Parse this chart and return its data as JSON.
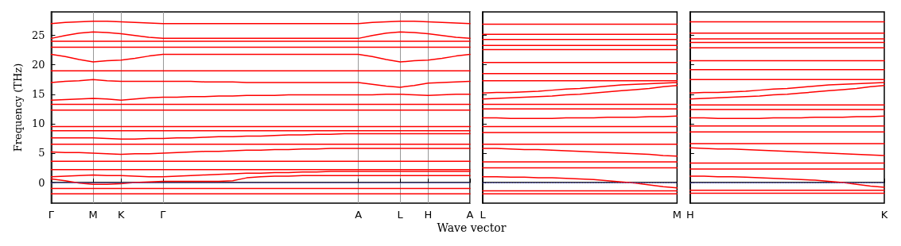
{
  "chart_data": [
    {
      "type": "line",
      "ylabel": "Frequency (THz)",
      "xlabel": "Wave vector",
      "categories": [
        "Γ",
        null,
        null,
        "M",
        null,
        "K",
        null,
        null,
        "Γ",
        null,
        null,
        null,
        null,
        null,
        null,
        null,
        null,
        null,
        null,
        null,
        null,
        null,
        "A",
        null,
        null,
        "L",
        null,
        "H",
        null,
        null,
        "A"
      ],
      "ylim": [
        -3.5,
        29
      ],
      "yticks": [
        0,
        5,
        10,
        15,
        20,
        25
      ],
      "grid": "x",
      "ref_lines": [
        {
          "axis": "y",
          "value": 0,
          "color": "#6a6aff",
          "line_style": "dotted"
        }
      ],
      "series": [
        {
          "color": "#ff0000",
          "values": [
            -1.9,
            -1.9,
            -1.9,
            -1.9,
            -1.9,
            -1.9,
            -1.9,
            -1.9,
            -1.9,
            -1.9,
            -1.9,
            -1.9,
            -1.9,
            -1.9,
            -1.9,
            -1.9,
            -1.9,
            -1.9,
            -1.9,
            -1.9,
            -1.9,
            -1.9,
            -1.9,
            -1.9,
            -1.9,
            -1.9,
            -1.9,
            -1.9,
            -1.9,
            -1.9,
            -1.9
          ]
        },
        {
          "color": "#ff0000",
          "values": [
            -1.0,
            -1.0,
            -1.0,
            -1.0,
            -1.0,
            -1.0,
            -1.0,
            -1.0,
            -1.0,
            -1.0,
            -1.0,
            -1.0,
            -1.0,
            -1.0,
            -1.0,
            -1.0,
            -1.0,
            -1.0,
            -1.0,
            -1.0,
            -1.0,
            -1.0,
            -1.0,
            -1.0,
            -1.0,
            -1.0,
            -1.0,
            -1.0,
            -1.0,
            -1.0,
            -1.0
          ]
        },
        {
          "color": "#ff0000",
          "values": [
            2.2,
            2.2,
            2.2,
            2.2,
            2.2,
            2.2,
            2.2,
            2.2,
            2.2,
            2.2,
            2.2,
            2.2,
            2.2,
            2.2,
            2.2,
            2.2,
            2.2,
            2.2,
            2.2,
            2.2,
            2.2,
            2.2,
            2.2,
            2.2,
            2.2,
            2.2,
            2.2,
            2.2,
            2.2,
            2.2,
            2.2
          ]
        },
        {
          "color": "#ff0000",
          "values": [
            3.6,
            3.6,
            3.6,
            3.6,
            3.6,
            3.6,
            3.6,
            3.6,
            3.6,
            3.6,
            3.6,
            3.6,
            3.6,
            3.6,
            3.6,
            3.6,
            3.6,
            3.6,
            3.6,
            3.6,
            3.6,
            3.6,
            3.6,
            3.6,
            3.6,
            3.6,
            3.6,
            3.6,
            3.6,
            3.6,
            3.6
          ]
        },
        {
          "color": "#ff0000",
          "values": [
            6.5,
            6.5,
            6.5,
            6.5,
            6.5,
            6.5,
            6.5,
            6.5,
            6.5,
            6.5,
            6.5,
            6.5,
            6.5,
            6.5,
            6.5,
            6.5,
            6.5,
            6.5,
            6.5,
            6.5,
            6.5,
            6.5,
            6.5,
            6.5,
            6.5,
            6.5,
            6.5,
            6.5,
            6.5,
            6.5,
            6.5
          ]
        },
        {
          "color": "#ff0000",
          "values": [
            8.8,
            8.8,
            8.8,
            8.8,
            8.8,
            8.8,
            8.8,
            8.8,
            8.8,
            8.8,
            8.8,
            8.8,
            8.8,
            8.8,
            8.8,
            8.8,
            8.8,
            8.8,
            8.8,
            8.8,
            8.8,
            8.8,
            8.8,
            8.8,
            8.8,
            8.8,
            8.8,
            8.8,
            8.8,
            8.8,
            8.8
          ]
        },
        {
          "color": "#ff0000",
          "values": [
            9.5,
            9.5,
            9.5,
            9.5,
            9.5,
            9.5,
            9.5,
            9.5,
            9.5,
            9.5,
            9.5,
            9.5,
            9.5,
            9.5,
            9.5,
            9.5,
            9.5,
            9.5,
            9.5,
            9.5,
            9.5,
            9.5,
            9.5,
            9.5,
            9.5,
            9.5,
            9.5,
            9.5,
            9.5,
            9.5,
            9.5
          ]
        },
        {
          "color": "#ff0000",
          "values": [
            12.3,
            12.3,
            12.3,
            12.3,
            12.3,
            12.3,
            12.3,
            12.3,
            12.3,
            12.3,
            12.3,
            12.3,
            12.3,
            12.3,
            12.3,
            12.3,
            12.3,
            12.3,
            12.3,
            12.3,
            12.3,
            12.3,
            12.3,
            12.3,
            12.3,
            12.3,
            12.3,
            12.3,
            12.3,
            12.3,
            12.3
          ]
        },
        {
          "color": "#ff0000",
          "values": [
            13.3,
            13.3,
            13.3,
            13.3,
            13.3,
            13.3,
            13.3,
            13.3,
            13.3,
            13.3,
            13.3,
            13.3,
            13.3,
            13.3,
            13.3,
            13.3,
            13.3,
            13.3,
            13.3,
            13.3,
            13.3,
            13.3,
            13.3,
            13.3,
            13.3,
            13.3,
            13.3,
            13.3,
            13.3,
            13.3,
            13.3
          ]
        },
        {
          "color": "#ff0000",
          "values": [
            19.0,
            19.0,
            19.0,
            19.0,
            19.0,
            19.0,
            19.0,
            19.0,
            19.0,
            19.0,
            19.0,
            19.0,
            19.0,
            19.0,
            19.0,
            19.0,
            19.0,
            19.0,
            19.0,
            19.0,
            19.0,
            19.0,
            19.0,
            19.0,
            19.0,
            19.0,
            19.0,
            19.0,
            19.0,
            19.0,
            19.0
          ]
        },
        {
          "color": "#ff0000",
          "values": [
            23.0,
            23.0,
            23.0,
            23.0,
            23.0,
            23.0,
            23.0,
            23.0,
            23.0,
            23.0,
            23.0,
            23.0,
            23.0,
            23.0,
            23.0,
            23.0,
            23.0,
            23.0,
            23.0,
            23.0,
            23.0,
            23.0,
            23.0,
            23.0,
            23.0,
            23.0,
            23.0,
            23.0,
            23.0,
            23.0,
            23.0
          ]
        },
        {
          "color": "#ff0000",
          "values": [
            24.0,
            24.0,
            24.0,
            24.0,
            24.0,
            24.0,
            24.0,
            24.0,
            24.0,
            24.0,
            24.0,
            24.0,
            24.0,
            24.0,
            24.0,
            24.0,
            24.0,
            24.0,
            24.0,
            24.0,
            24.0,
            24.0,
            24.0,
            24.0,
            24.0,
            24.0,
            24.0,
            24.0,
            24.0,
            24.0,
            24.0
          ]
        },
        {
          "color": "#ff0000",
          "values": [
            0.6,
            0.3,
            -0.1,
            -0.3,
            -0.3,
            -0.2,
            0,
            0.1,
            0.2,
            0.2,
            0.2,
            0.2,
            0.2,
            0.3,
            0.8,
            1.0,
            1.1,
            1.1,
            1.2,
            1.2,
            1.2,
            1.2,
            1.2,
            1.2,
            1.2,
            1.2,
            1.2,
            1.2,
            1.2,
            1.2,
            1.2
          ]
        },
        {
          "color": "#ff0000",
          "values": [
            1.0,
            1.1,
            1.2,
            1.3,
            1.2,
            1.2,
            1.1,
            1.0,
            1.0,
            1.1,
            1.2,
            1.3,
            1.4,
            1.5,
            1.6,
            1.6,
            1.7,
            1.7,
            1.8,
            1.8,
            1.9,
            1.9,
            1.9,
            1.9,
            1.9,
            1.9,
            1.9,
            1.9,
            1.9,
            1.9,
            1.9
          ]
        },
        {
          "color": "#ff0000",
          "values": [
            5.2,
            5.1,
            5.1,
            5.0,
            4.9,
            4.8,
            4.9,
            4.9,
            5.0,
            5.1,
            5.2,
            5.3,
            5.3,
            5.4,
            5.5,
            5.5,
            5.6,
            5.6,
            5.7,
            5.7,
            5.8,
            5.8,
            5.8,
            5.8,
            5.8,
            5.8,
            5.8,
            5.8,
            5.8,
            5.8,
            5.8
          ]
        },
        {
          "color": "#ff0000",
          "values": [
            7.6,
            7.6,
            7.6,
            7.6,
            7.5,
            7.4,
            7.4,
            7.5,
            7.5,
            7.6,
            7.6,
            7.7,
            7.8,
            7.8,
            7.9,
            7.9,
            8.0,
            8.1,
            8.1,
            8.2,
            8.2,
            8.3,
            8.3,
            8.3,
            8.3,
            8.3,
            8.3,
            8.3,
            8.3,
            8.3,
            8.3
          ]
        },
        {
          "color": "#ff0000",
          "values": [
            14.0,
            14.1,
            14.2,
            14.3,
            14.2,
            14.0,
            14.2,
            14.4,
            14.5,
            14.5,
            14.6,
            14.6,
            14.7,
            14.7,
            14.8,
            14.8,
            14.8,
            14.9,
            14.9,
            14.9,
            14.9,
            14.9,
            14.9,
            14.9,
            15.0,
            15.0,
            14.9,
            14.8,
            14.9,
            15.0,
            15.0
          ]
        },
        {
          "color": "#ff0000",
          "values": [
            17.0,
            17.2,
            17.3,
            17.5,
            17.3,
            17.2,
            17.2,
            17.2,
            17.2,
            17.2,
            17.2,
            17.1,
            17.1,
            17.1,
            17.0,
            17.0,
            17.0,
            17.0,
            17.0,
            17.0,
            17.0,
            17.0,
            17.0,
            16.7,
            16.4,
            16.2,
            16.5,
            16.9,
            17.0,
            17.1,
            17.2
          ]
        },
        {
          "color": "#ff0000",
          "values": [
            21.8,
            21.4,
            20.9,
            20.5,
            20.7,
            20.8,
            21.1,
            21.5,
            21.8,
            21.8,
            21.8,
            21.8,
            21.8,
            21.8,
            21.8,
            21.8,
            21.8,
            21.8,
            21.8,
            21.8,
            21.8,
            21.8,
            21.8,
            21.4,
            20.9,
            20.5,
            20.7,
            20.8,
            21.1,
            21.5,
            21.8
          ]
        },
        {
          "color": "#ff0000",
          "values": [
            24.5,
            25.0,
            25.4,
            25.6,
            25.5,
            25.3,
            25.0,
            24.7,
            24.5,
            24.5,
            24.5,
            24.5,
            24.5,
            24.5,
            24.5,
            24.5,
            24.5,
            24.5,
            24.5,
            24.5,
            24.5,
            24.5,
            24.5,
            25.0,
            25.4,
            25.6,
            25.5,
            25.3,
            25.0,
            24.7,
            24.5
          ]
        },
        {
          "color": "#ff0000",
          "values": [
            27.0,
            27.2,
            27.3,
            27.4,
            27.4,
            27.3,
            27.2,
            27.1,
            27.0,
            27.0,
            27.0,
            27.0,
            27.0,
            27.0,
            27.0,
            27.0,
            27.0,
            27.0,
            27.0,
            27.0,
            27.0,
            27.0,
            27.0,
            27.2,
            27.3,
            27.4,
            27.4,
            27.3,
            27.2,
            27.1,
            27.0
          ]
        }
      ]
    },
    {
      "type": "line",
      "categories": [
        "L",
        null,
        null,
        null,
        null,
        null,
        null,
        null,
        null,
        null,
        null,
        null,
        null,
        null,
        "M"
      ],
      "ylim": [
        -3.5,
        29
      ],
      "yticks": [
        0,
        5,
        10,
        15,
        20,
        25
      ],
      "tick_labels": "x",
      "ref_lines": [
        {
          "axis": "y",
          "value": 0,
          "color": "#6a6aff",
          "line_style": "dotted"
        }
      ],
      "series": [
        {
          "color": "#ff0000",
          "values": [
            -1.9,
            -1.9,
            -1.9,
            -1.9,
            -1.9,
            -1.9,
            -1.9,
            -1.9,
            -1.9,
            -1.9,
            -1.9,
            -1.9,
            -1.9,
            -1.9,
            -1.9
          ]
        },
        {
          "color": "#ff0000",
          "values": [
            -1.4,
            -1.4,
            -1.4,
            -1.4,
            -1.4,
            -1.4,
            -1.4,
            -1.4,
            -1.4,
            -1.4,
            -1.4,
            -1.4,
            -1.4,
            -1.4,
            -1.4
          ]
        },
        {
          "color": "#ff0000",
          "values": [
            2.5,
            2.5,
            2.5,
            2.5,
            2.5,
            2.5,
            2.5,
            2.5,
            2.5,
            2.5,
            2.5,
            2.5,
            2.5,
            2.5,
            2.5
          ]
        },
        {
          "color": "#ff0000",
          "values": [
            3.5,
            3.5,
            3.5,
            3.5,
            3.5,
            3.5,
            3.5,
            3.5,
            3.5,
            3.5,
            3.5,
            3.5,
            3.5,
            3.5,
            3.5
          ]
        },
        {
          "color": "#ff0000",
          "values": [
            6.5,
            6.5,
            6.5,
            6.5,
            6.5,
            6.5,
            6.5,
            6.5,
            6.5,
            6.5,
            6.5,
            6.5,
            6.5,
            6.5,
            6.5
          ]
        },
        {
          "color": "#ff0000",
          "values": [
            8.5,
            8.5,
            8.5,
            8.5,
            8.5,
            8.5,
            8.5,
            8.5,
            8.5,
            8.5,
            8.5,
            8.5,
            8.5,
            8.5,
            8.5
          ]
        },
        {
          "color": "#ff0000",
          "values": [
            9.5,
            9.5,
            9.5,
            9.5,
            9.5,
            9.5,
            9.5,
            9.5,
            9.5,
            9.5,
            9.5,
            9.5,
            9.5,
            9.5,
            9.5
          ]
        },
        {
          "color": "#ff0000",
          "values": [
            12.5,
            12.5,
            12.5,
            12.5,
            12.5,
            12.5,
            12.5,
            12.5,
            12.5,
            12.5,
            12.5,
            12.5,
            12.5,
            12.5,
            12.5
          ]
        },
        {
          "color": "#ff0000",
          "values": [
            13.3,
            13.3,
            13.3,
            13.3,
            13.3,
            13.3,
            13.3,
            13.3,
            13.3,
            13.3,
            13.3,
            13.3,
            13.3,
            13.3,
            13.3
          ]
        },
        {
          "color": "#ff0000",
          "values": [
            17.3,
            17.3,
            17.3,
            17.3,
            17.3,
            17.3,
            17.3,
            17.3,
            17.3,
            17.3,
            17.3,
            17.3,
            17.3,
            17.3,
            17.3
          ]
        },
        {
          "color": "#ff0000",
          "values": [
            18.5,
            18.5,
            18.5,
            18.5,
            18.5,
            18.5,
            18.5,
            18.5,
            18.5,
            18.5,
            18.5,
            18.5,
            18.5,
            18.5,
            18.5
          ]
        },
        {
          "color": "#ff0000",
          "values": [
            20.4,
            20.4,
            20.4,
            20.4,
            20.4,
            20.4,
            20.4,
            20.4,
            20.4,
            20.4,
            20.4,
            20.4,
            20.4,
            20.4,
            20.4
          ]
        },
        {
          "color": "#ff0000",
          "values": [
            22.6,
            22.6,
            22.6,
            22.6,
            22.6,
            22.6,
            22.6,
            22.6,
            22.6,
            22.6,
            22.6,
            22.6,
            22.6,
            22.6,
            22.6
          ]
        },
        {
          "color": "#ff0000",
          "values": [
            23.3,
            23.3,
            23.3,
            23.3,
            23.3,
            23.3,
            23.3,
            23.3,
            23.3,
            23.3,
            23.3,
            23.3,
            23.3,
            23.3,
            23.3
          ]
        },
        {
          "color": "#ff0000",
          "values": [
            24.3,
            24.3,
            24.3,
            24.3,
            24.3,
            24.3,
            24.3,
            24.3,
            24.3,
            24.3,
            24.3,
            24.3,
            24.3,
            24.3,
            24.3
          ]
        },
        {
          "color": "#ff0000",
          "values": [
            25.2,
            25.2,
            25.2,
            25.2,
            25.2,
            25.2,
            25.2,
            25.2,
            25.2,
            25.2,
            25.2,
            25.2,
            25.2,
            25.2,
            25.2
          ]
        },
        {
          "color": "#ff0000",
          "values": [
            26.9,
            26.9,
            26.9,
            26.9,
            26.9,
            26.9,
            26.9,
            26.9,
            26.9,
            26.9,
            26.9,
            26.9,
            26.9,
            26.9,
            26.9
          ]
        },
        {
          "color": "#ff0000",
          "values": [
            1.0,
            1.0,
            0.9,
            0.9,
            0.8,
            0.8,
            0.7,
            0.6,
            0.5,
            0.3,
            0.1,
            -0.1,
            -0.4,
            -0.7,
            -0.9
          ]
        },
        {
          "color": "#ff0000",
          "values": [
            5.8,
            5.8,
            5.7,
            5.6,
            5.6,
            5.5,
            5.4,
            5.3,
            5.2,
            5.1,
            5.0,
            4.9,
            4.8,
            4.6,
            4.5
          ]
        },
        {
          "color": "#ff0000",
          "values": [
            11.0,
            11.0,
            10.9,
            10.9,
            10.9,
            10.9,
            11.0,
            11.0,
            11.0,
            11.1,
            11.1,
            11.1,
            11.2,
            11.2,
            11.3
          ]
        },
        {
          "color": "#ff0000",
          "values": [
            14.2,
            14.3,
            14.4,
            14.5,
            14.6,
            14.7,
            14.9,
            15.0,
            15.2,
            15.4,
            15.6,
            15.8,
            16.0,
            16.3,
            16.5
          ]
        },
        {
          "color": "#ff0000",
          "values": [
            15.2,
            15.3,
            15.3,
            15.4,
            15.5,
            15.7,
            15.9,
            16.0,
            16.2,
            16.4,
            16.6,
            16.7,
            16.8,
            16.9,
            17.0
          ]
        }
      ]
    },
    {
      "type": "line",
      "categories": [
        "H",
        null,
        null,
        null,
        null,
        null,
        null,
        null,
        null,
        null,
        null,
        null,
        null,
        null,
        "K"
      ],
      "ylim": [
        -3.5,
        29
      ],
      "yticks": [
        0,
        5,
        10,
        15,
        20,
        25
      ],
      "tick_labels": "x",
      "ref_lines": [
        {
          "axis": "y",
          "value": 0,
          "color": "#6a6aff",
          "line_style": "dotted"
        }
      ],
      "series": [
        {
          "color": "#ff0000",
          "values": [
            -1.8,
            -1.8,
            -1.8,
            -1.8,
            -1.8,
            -1.8,
            -1.8,
            -1.8,
            -1.8,
            -1.8,
            -1.8,
            -1.8,
            -1.8,
            -1.8,
            -1.8
          ]
        },
        {
          "color": "#ff0000",
          "values": [
            -1.3,
            -1.3,
            -1.3,
            -1.3,
            -1.3,
            -1.3,
            -1.3,
            -1.3,
            -1.3,
            -1.3,
            -1.3,
            -1.3,
            -1.3,
            -1.3,
            -1.3
          ]
        },
        {
          "color": "#ff0000",
          "values": [
            2.3,
            2.3,
            2.3,
            2.3,
            2.3,
            2.3,
            2.3,
            2.3,
            2.3,
            2.3,
            2.3,
            2.3,
            2.3,
            2.3,
            2.3
          ]
        },
        {
          "color": "#ff0000",
          "values": [
            3.3,
            3.3,
            3.3,
            3.3,
            3.3,
            3.3,
            3.3,
            3.3,
            3.3,
            3.3,
            3.3,
            3.3,
            3.3,
            3.3,
            3.3
          ]
        },
        {
          "color": "#ff0000",
          "values": [
            6.6,
            6.6,
            6.6,
            6.6,
            6.6,
            6.6,
            6.6,
            6.6,
            6.6,
            6.6,
            6.6,
            6.6,
            6.6,
            6.6,
            6.6
          ]
        },
        {
          "color": "#ff0000",
          "values": [
            8.6,
            8.6,
            8.6,
            8.6,
            8.6,
            8.6,
            8.6,
            8.6,
            8.6,
            8.6,
            8.6,
            8.6,
            8.6,
            8.6,
            8.6
          ]
        },
        {
          "color": "#ff0000",
          "values": [
            9.6,
            9.6,
            9.6,
            9.6,
            9.6,
            9.6,
            9.6,
            9.6,
            9.6,
            9.6,
            9.6,
            9.6,
            9.6,
            9.6,
            9.6
          ]
        },
        {
          "color": "#ff0000",
          "values": [
            12.4,
            12.4,
            12.4,
            12.4,
            12.4,
            12.4,
            12.4,
            12.4,
            12.4,
            12.4,
            12.4,
            12.4,
            12.4,
            12.4,
            12.4
          ]
        },
        {
          "color": "#ff0000",
          "values": [
            13.2,
            13.2,
            13.2,
            13.2,
            13.2,
            13.2,
            13.2,
            13.2,
            13.2,
            13.2,
            13.2,
            13.2,
            13.2,
            13.2,
            13.2
          ]
        },
        {
          "color": "#ff0000",
          "values": [
            17.5,
            17.5,
            17.5,
            17.5,
            17.5,
            17.5,
            17.5,
            17.5,
            17.5,
            17.5,
            17.5,
            17.5,
            17.5,
            17.5,
            17.5
          ]
        },
        {
          "color": "#ff0000",
          "values": [
            19.2,
            19.2,
            19.2,
            19.2,
            19.2,
            19.2,
            19.2,
            19.2,
            19.2,
            19.2,
            19.2,
            19.2,
            19.2,
            19.2,
            19.2
          ]
        },
        {
          "color": "#ff0000",
          "values": [
            20.7,
            20.7,
            20.7,
            20.7,
            20.7,
            20.7,
            20.7,
            20.7,
            20.7,
            20.7,
            20.7,
            20.7,
            20.7,
            20.7,
            20.7
          ]
        },
        {
          "color": "#ff0000",
          "values": [
            22.9,
            22.9,
            22.9,
            22.9,
            22.9,
            22.9,
            22.9,
            22.9,
            22.9,
            22.9,
            22.9,
            22.9,
            22.9,
            22.9,
            22.9
          ]
        },
        {
          "color": "#ff0000",
          "values": [
            23.8,
            23.8,
            23.8,
            23.8,
            23.8,
            23.8,
            23.8,
            23.8,
            23.8,
            23.8,
            23.8,
            23.8,
            23.8,
            23.8,
            23.8
          ]
        },
        {
          "color": "#ff0000",
          "values": [
            24.4,
            24.4,
            24.4,
            24.4,
            24.4,
            24.4,
            24.4,
            24.4,
            24.4,
            24.4,
            24.4,
            24.4,
            24.4,
            24.4,
            24.4
          ]
        },
        {
          "color": "#ff0000",
          "values": [
            25.4,
            25.4,
            25.4,
            25.4,
            25.4,
            25.4,
            25.4,
            25.4,
            25.4,
            25.4,
            25.4,
            25.4,
            25.4,
            25.4,
            25.4
          ]
        },
        {
          "color": "#ff0000",
          "values": [
            27.3,
            27.3,
            27.3,
            27.3,
            27.3,
            27.3,
            27.3,
            27.3,
            27.3,
            27.3,
            27.3,
            27.3,
            27.3,
            27.3,
            27.3
          ]
        },
        {
          "color": "#ff0000",
          "values": [
            1.1,
            1.1,
            1.0,
            1.0,
            0.9,
            0.8,
            0.7,
            0.6,
            0.5,
            0.4,
            0.2,
            0.0,
            -0.3,
            -0.6,
            -0.8
          ]
        },
        {
          "color": "#ff0000",
          "values": [
            5.9,
            5.8,
            5.7,
            5.7,
            5.6,
            5.5,
            5.4,
            5.3,
            5.2,
            5.1,
            5.0,
            4.9,
            4.8,
            4.7,
            4.6
          ]
        },
        {
          "color": "#ff0000",
          "values": [
            11.0,
            11.0,
            10.9,
            10.9,
            10.9,
            10.9,
            11.0,
            11.0,
            11.0,
            11.1,
            11.1,
            11.1,
            11.2,
            11.2,
            11.3
          ]
        },
        {
          "color": "#ff0000",
          "values": [
            14.2,
            14.3,
            14.4,
            14.5,
            14.6,
            14.7,
            14.9,
            15.0,
            15.2,
            15.4,
            15.6,
            15.8,
            16.0,
            16.3,
            16.5
          ]
        },
        {
          "color": "#ff0000",
          "values": [
            15.2,
            15.3,
            15.3,
            15.4,
            15.5,
            15.7,
            15.9,
            16.0,
            16.2,
            16.4,
            16.6,
            16.7,
            16.8,
            16.9,
            17.0
          ]
        }
      ]
    }
  ]
}
